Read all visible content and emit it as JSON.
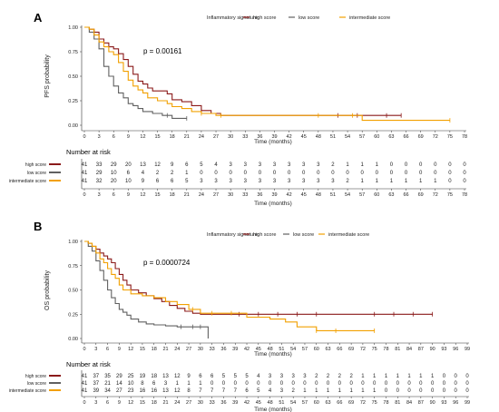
{
  "chart_data": [
    {
      "type": "line",
      "panel_label": "A",
      "legend_title": "Inflammatory signature:",
      "legend_items": [
        "high score",
        "low score",
        "intermediate score"
      ],
      "p_value": "p = 0.00161",
      "xlabel": "Time (months)",
      "ylabel": "PFS probability",
      "xlim": [
        0,
        78
      ],
      "ylim": [
        0,
        1
      ],
      "x_ticks": [
        0,
        3,
        6,
        9,
        12,
        15,
        18,
        21,
        24,
        27,
        30,
        33,
        36,
        39,
        42,
        45,
        48,
        51,
        54,
        57,
        60,
        63,
        66,
        69,
        72,
        75,
        78
      ],
      "y_ticks": [
        0.0,
        0.25,
        0.5,
        0.75,
        1.0
      ],
      "y_tick_labels": [
        "0.00",
        "0.25",
        "0.50",
        "0.75",
        "1.00"
      ],
      "series": [
        {
          "name": "high score",
          "color": "#8b1a1a",
          "points": [
            [
              0,
              1
            ],
            [
              1,
              0.98
            ],
            [
              2,
              0.95
            ],
            [
              3,
              0.88
            ],
            [
              4,
              0.84
            ],
            [
              5,
              0.8
            ],
            [
              6,
              0.78
            ],
            [
              7,
              0.73
            ],
            [
              8,
              0.67
            ],
            [
              9,
              0.6
            ],
            [
              10,
              0.52
            ],
            [
              11,
              0.45
            ],
            [
              12,
              0.42
            ],
            [
              13,
              0.38
            ],
            [
              14,
              0.35
            ],
            [
              17,
              0.32
            ],
            [
              18,
              0.26
            ],
            [
              20,
              0.24
            ],
            [
              22,
              0.2
            ],
            [
              24,
              0.15
            ],
            [
              26,
              0.12
            ],
            [
              28,
              0.1
            ],
            [
              65,
              0.1
            ]
          ],
          "censor_x": [
            24,
            52,
            56,
            62,
            65
          ]
        },
        {
          "name": "low score",
          "color": "#606060",
          "points": [
            [
              0,
              1
            ],
            [
              1,
              0.95
            ],
            [
              2,
              0.88
            ],
            [
              3,
              0.78
            ],
            [
              4,
              0.6
            ],
            [
              5,
              0.5
            ],
            [
              6,
              0.4
            ],
            [
              7,
              0.33
            ],
            [
              8,
              0.28
            ],
            [
              9,
              0.22
            ],
            [
              10,
              0.2
            ],
            [
              11,
              0.17
            ],
            [
              12,
              0.14
            ],
            [
              14,
              0.12
            ],
            [
              16,
              0.1
            ],
            [
              18,
              0.07
            ],
            [
              21,
              0.07
            ]
          ],
          "censor_x": [
            17,
            21
          ]
        },
        {
          "name": "intermediate score",
          "color": "#f2a000",
          "points": [
            [
              0,
              1
            ],
            [
              1,
              0.98
            ],
            [
              2,
              0.92
            ],
            [
              3,
              0.85
            ],
            [
              4,
              0.8
            ],
            [
              5,
              0.75
            ],
            [
              6,
              0.72
            ],
            [
              7,
              0.64
            ],
            [
              8,
              0.55
            ],
            [
              9,
              0.46
            ],
            [
              10,
              0.4
            ],
            [
              11,
              0.36
            ],
            [
              12,
              0.33
            ],
            [
              13,
              0.28
            ],
            [
              15,
              0.25
            ],
            [
              17,
              0.22
            ],
            [
              18,
              0.19
            ],
            [
              20,
              0.17
            ],
            [
              22,
              0.14
            ],
            [
              24,
              0.12
            ],
            [
              27,
              0.1
            ],
            [
              56,
              0.1
            ],
            [
              57,
              0.05
            ],
            [
              75,
              0.05
            ]
          ],
          "censor_x": [
            24,
            28,
            48,
            55,
            75
          ]
        }
      ],
      "risk_table": {
        "title": "Number at risk",
        "times": [
          0,
          3,
          6,
          9,
          12,
          15,
          18,
          21,
          24,
          27,
          30,
          33,
          36,
          39,
          42,
          45,
          48,
          51,
          54,
          57,
          60,
          63,
          66,
          69,
          72,
          75,
          78
        ],
        "rows": [
          {
            "label": "high score",
            "color": "#8b1a1a",
            "values": [
              41,
              33,
              29,
              20,
              13,
              12,
              9,
              6,
              5,
              4,
              3,
              3,
              3,
              3,
              3,
              3,
              3,
              2,
              1,
              1,
              1,
              0,
              0,
              0,
              0,
              0,
              0
            ]
          },
          {
            "label": "low score",
            "color": "#606060",
            "values": [
              41,
              29,
              10,
              6,
              4,
              2,
              2,
              1,
              0,
              0,
              0,
              0,
              0,
              0,
              0,
              0,
              0,
              0,
              0,
              0,
              0,
              0,
              0,
              0,
              0,
              0,
              0
            ]
          },
          {
            "label": "intermediate score",
            "color": "#f2a000",
            "values": [
              41,
              32,
              20,
              10,
              9,
              6,
              6,
              5,
              3,
              3,
              3,
              3,
              3,
              3,
              3,
              3,
              3,
              3,
              2,
              1,
              1,
              1,
              1,
              1,
              1,
              0,
              0
            ]
          }
        ]
      }
    },
    {
      "type": "line",
      "panel_label": "B",
      "legend_title": "Inflammatory signature:",
      "legend_items": [
        "high score",
        "low score",
        "intermediate score"
      ],
      "p_value": "p = 0.0000724",
      "xlabel": "Time (months)",
      "ylabel": "OS probability",
      "xlim": [
        0,
        99
      ],
      "ylim": [
        0,
        1
      ],
      "x_ticks": [
        0,
        3,
        6,
        9,
        12,
        15,
        18,
        21,
        24,
        27,
        30,
        33,
        36,
        39,
        42,
        45,
        48,
        51,
        54,
        57,
        60,
        63,
        66,
        69,
        72,
        75,
        78,
        81,
        84,
        87,
        90,
        93,
        96,
        99
      ],
      "y_ticks": [
        0.0,
        0.25,
        0.5,
        0.75,
        1.0
      ],
      "y_tick_labels": [
        "0.00",
        "0.25",
        "0.50",
        "0.75",
        "1.00"
      ],
      "series": [
        {
          "name": "high score",
          "color": "#8b1a1a",
          "points": [
            [
              0,
              1
            ],
            [
              1,
              0.98
            ],
            [
              2,
              0.95
            ],
            [
              3,
              0.92
            ],
            [
              4,
              0.88
            ],
            [
              5,
              0.85
            ],
            [
              6,
              0.82
            ],
            [
              7,
              0.78
            ],
            [
              8,
              0.72
            ],
            [
              9,
              0.66
            ],
            [
              10,
              0.6
            ],
            [
              11,
              0.55
            ],
            [
              12,
              0.5
            ],
            [
              14,
              0.47
            ],
            [
              16,
              0.44
            ],
            [
              18,
              0.41
            ],
            [
              20,
              0.38
            ],
            [
              22,
              0.34
            ],
            [
              24,
              0.31
            ],
            [
              26,
              0.28
            ],
            [
              28,
              0.26
            ],
            [
              30,
              0.25
            ],
            [
              90,
              0.25
            ]
          ],
          "censor_x": [
            40,
            45,
            50,
            55,
            60,
            75,
            80,
            85,
            90
          ]
        },
        {
          "name": "low score",
          "color": "#606060",
          "points": [
            [
              0,
              1
            ],
            [
              1,
              0.95
            ],
            [
              2,
              0.9
            ],
            [
              3,
              0.8
            ],
            [
              4,
              0.7
            ],
            [
              5,
              0.6
            ],
            [
              6,
              0.5
            ],
            [
              7,
              0.42
            ],
            [
              8,
              0.36
            ],
            [
              9,
              0.3
            ],
            [
              10,
              0.27
            ],
            [
              11,
              0.24
            ],
            [
              12,
              0.2
            ],
            [
              14,
              0.17
            ],
            [
              16,
              0.15
            ],
            [
              18,
              0.14
            ],
            [
              21,
              0.13
            ],
            [
              24,
              0.12
            ],
            [
              30,
              0.12
            ],
            [
              32,
              0.12
            ],
            [
              32,
              0.0
            ]
          ],
          "censor_x": [
            25,
            28,
            30
          ]
        },
        {
          "name": "intermediate score",
          "color": "#f2a000",
          "points": [
            [
              0,
              1
            ],
            [
              1,
              0.98
            ],
            [
              2,
              0.95
            ],
            [
              3,
              0.88
            ],
            [
              4,
              0.82
            ],
            [
              5,
              0.78
            ],
            [
              6,
              0.72
            ],
            [
              7,
              0.66
            ],
            [
              8,
              0.62
            ],
            [
              9,
              0.55
            ],
            [
              10,
              0.5
            ],
            [
              12,
              0.46
            ],
            [
              15,
              0.44
            ],
            [
              18,
              0.42
            ],
            [
              21,
              0.38
            ],
            [
              24,
              0.35
            ],
            [
              27,
              0.3
            ],
            [
              30,
              0.26
            ],
            [
              42,
              0.22
            ],
            [
              48,
              0.2
            ],
            [
              52,
              0.17
            ],
            [
              55,
              0.12
            ],
            [
              60,
              0.08
            ],
            [
              75,
              0.08
            ]
          ],
          "censor_x": [
            28,
            33,
            38,
            60,
            65,
            75
          ]
        }
      ],
      "risk_table": {
        "title": "Number at risk",
        "times": [
          0,
          3,
          6,
          9,
          12,
          15,
          18,
          21,
          24,
          27,
          30,
          33,
          36,
          39,
          42,
          45,
          48,
          51,
          54,
          57,
          60,
          63,
          66,
          69,
          72,
          75,
          78,
          81,
          84,
          87,
          90,
          93,
          96,
          99
        ],
        "rows": [
          {
            "label": "high score",
            "color": "#8b1a1a",
            "values": [
              41,
              37,
              35,
              29,
              25,
              19,
              18,
              13,
              12,
              9,
              6,
              6,
              5,
              5,
              5,
              4,
              3,
              3,
              3,
              3,
              2,
              2,
              2,
              2,
              1,
              1,
              1,
              1,
              1,
              1,
              1,
              0,
              0,
              0
            ]
          },
          {
            "label": "low score",
            "color": "#606060",
            "values": [
              41,
              37,
              21,
              14,
              10,
              8,
              6,
              3,
              1,
              1,
              1,
              0,
              0,
              0,
              0,
              0,
              0,
              0,
              0,
              0,
              0,
              0,
              0,
              0,
              0,
              0,
              0,
              0,
              0,
              0,
              0,
              0,
              0,
              0
            ]
          },
          {
            "label": "intermediate score",
            "color": "#f2a000",
            "values": [
              41,
              39,
              34,
              27,
              23,
              16,
              16,
              13,
              12,
              8,
              7,
              7,
              7,
              7,
              6,
              5,
              4,
              3,
              2,
              1,
              1,
              1,
              1,
              1,
              1,
              1,
              0,
              0,
              0,
              0,
              0,
              0,
              0,
              0
            ]
          }
        ]
      }
    }
  ]
}
